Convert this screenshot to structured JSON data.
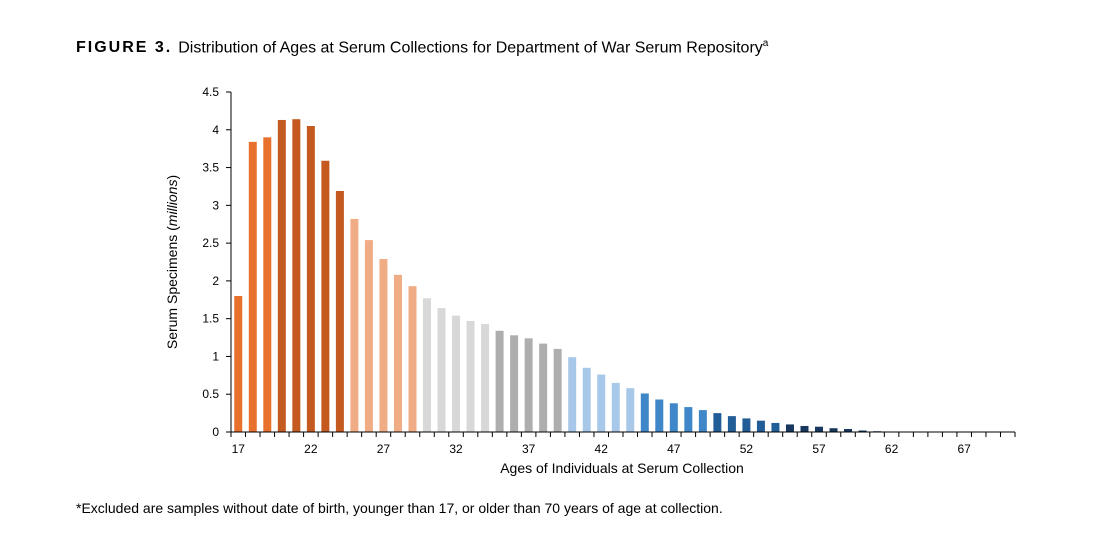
{
  "figure": {
    "label": "FIGURE 3.",
    "title": "Distribution of Ages at Serum Collections for Department of War Serum Repository",
    "superscript": "a"
  },
  "footnote": "*Excluded are samples without date of birth, younger than 17, or older than 70 years of age at collection.",
  "chart_data": {
    "type": "bar",
    "xlabel": "Ages of Individuals at Serum Collection",
    "ylabel_prefix": "Serum Specimens (",
    "ylabel_italic": "millions",
    "ylabel_suffix": ")",
    "ylim": [
      0,
      4.5
    ],
    "yticks": [
      "0",
      "0.5",
      "1",
      "1.5",
      "2",
      "2.5",
      "3",
      "3.5",
      "4",
      "4.5"
    ],
    "ytick_values": [
      0,
      0.5,
      1,
      1.5,
      2,
      2.5,
      3,
      3.5,
      4,
      4.5
    ],
    "xticks": [
      17,
      22,
      27,
      32,
      37,
      42,
      47,
      52,
      57,
      62,
      67
    ],
    "categories": [
      17,
      18,
      19,
      20,
      21,
      22,
      23,
      24,
      25,
      26,
      27,
      28,
      29,
      30,
      31,
      32,
      33,
      34,
      35,
      36,
      37,
      38,
      39,
      40,
      41,
      42,
      43,
      44,
      45,
      46,
      47,
      48,
      49,
      50,
      51,
      52,
      53,
      54,
      55,
      56,
      57,
      58,
      59,
      60,
      61,
      62,
      63,
      64,
      65,
      66,
      67,
      68,
      69,
      70
    ],
    "values": [
      1.8,
      3.84,
      3.9,
      4.13,
      4.14,
      4.05,
      3.59,
      3.19,
      2.82,
      2.54,
      2.29,
      2.08,
      1.93,
      1.77,
      1.64,
      1.54,
      1.47,
      1.43,
      1.34,
      1.28,
      1.24,
      1.17,
      1.1,
      0.99,
      0.85,
      0.76,
      0.65,
      0.58,
      0.51,
      0.43,
      0.38,
      0.33,
      0.29,
      0.25,
      0.21,
      0.18,
      0.15,
      0.12,
      0.1,
      0.08,
      0.07,
      0.05,
      0.04,
      0.02,
      0.01,
      0.005,
      0.004,
      0.003,
      0.002,
      0.002,
      0.001,
      0.001,
      0.001,
      0.001
    ],
    "color_groups": [
      {
        "from": 17,
        "to": 19,
        "color": "#e8712d"
      },
      {
        "from": 20,
        "to": 24,
        "color": "#c45a1f"
      },
      {
        "from": 25,
        "to": 29,
        "color": "#f0ac85"
      },
      {
        "from": 30,
        "to": 34,
        "color": "#d8d8d8"
      },
      {
        "from": 35,
        "to": 39,
        "color": "#aeaeae"
      },
      {
        "from": 40,
        "to": 44,
        "color": "#a7c8e8"
      },
      {
        "from": 45,
        "to": 49,
        "color": "#3f87c9"
      },
      {
        "from": 50,
        "to": 54,
        "color": "#215d97"
      },
      {
        "from": 55,
        "to": 70,
        "color": "#17375e"
      }
    ],
    "grid": false,
    "legend": "none"
  }
}
